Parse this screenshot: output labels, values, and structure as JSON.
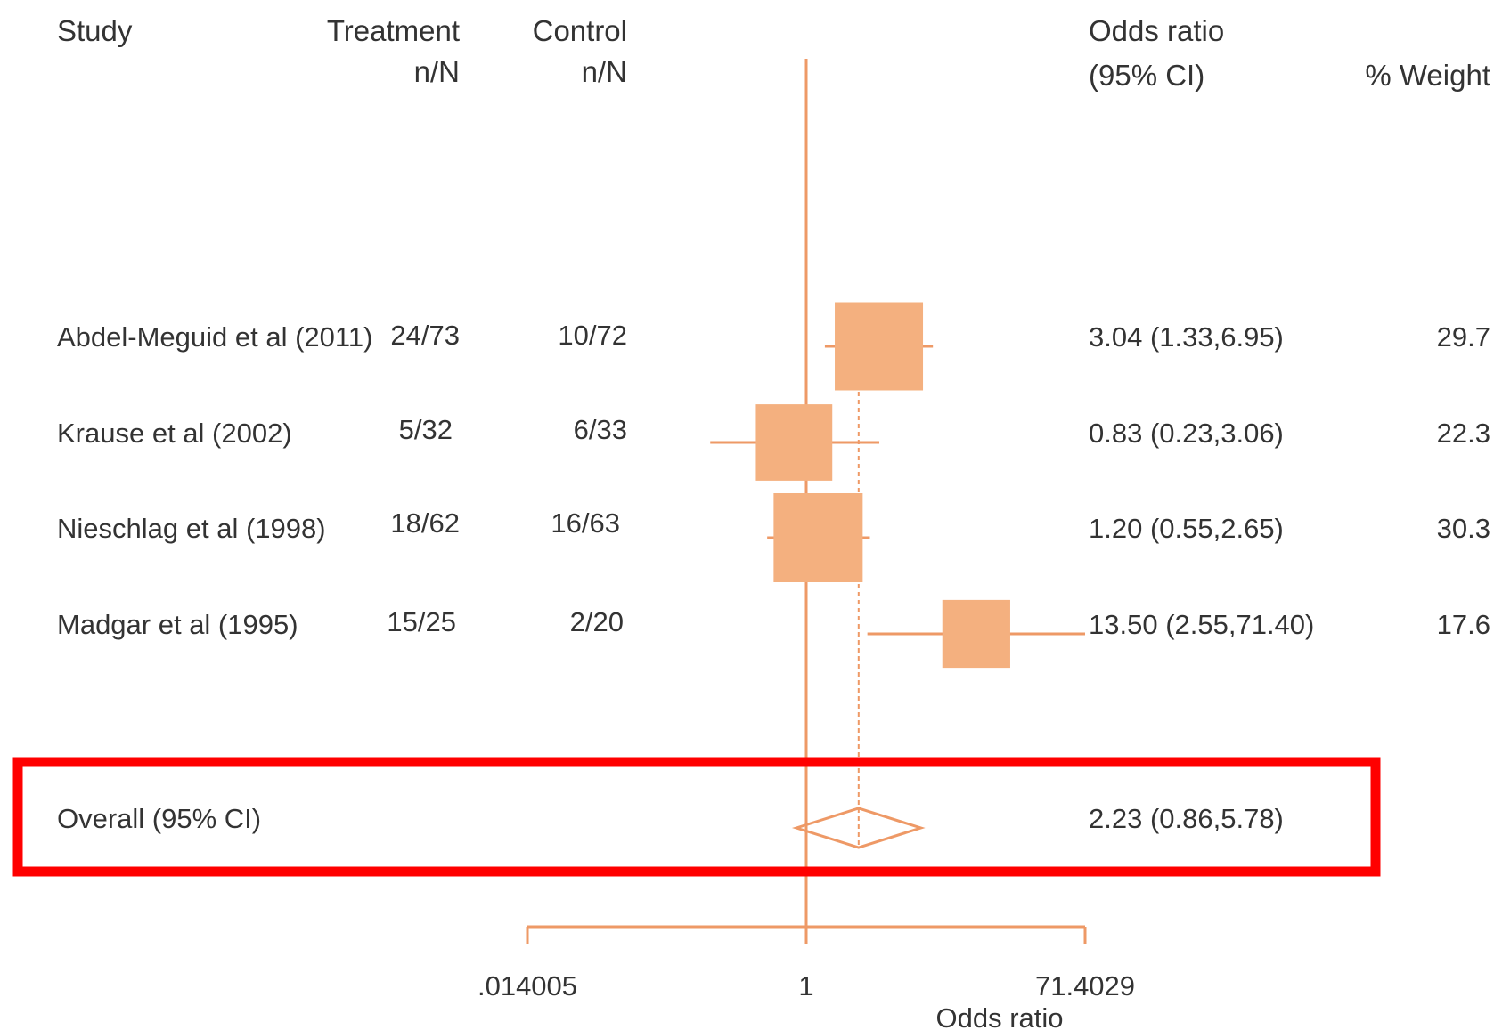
{
  "chart_data": {
    "type": "forest",
    "headers": {
      "study": "Study",
      "treatment": "Treatment",
      "treatment_sub": "n/N",
      "control": "Control",
      "control_sub": "n/N",
      "or": "Odds ratio",
      "or_sub": "(95% CI)",
      "weight": "% Weight"
    },
    "studies": [
      {
        "name": "Abdel-Meguid et al (2011)",
        "treatment": "24/73",
        "control": "10/72",
        "or": 3.04,
        "lo": 1.33,
        "hi": 6.95,
        "or_label": "3.04 (1.33,6.95)",
        "weight": 29.7,
        "weight_label": "29.7"
      },
      {
        "name": "Krause et al (2002)",
        "treatment": "5/32",
        "control": "6/33",
        "or": 0.83,
        "lo": 0.23,
        "hi": 3.06,
        "or_label": "0.83 (0.23,3.06)",
        "weight": 22.3,
        "weight_label": "22.3"
      },
      {
        "name": "Nieschlag et al (1998)",
        "treatment": "18/62",
        "control": "16/63",
        "or": 1.2,
        "lo": 0.55,
        "hi": 2.65,
        "or_label": "1.20 (0.55,2.65)",
        "weight": 30.3,
        "weight_label": "30.3"
      },
      {
        "name": "Madgar et al (1995)",
        "treatment": "15/25",
        "control": "2/20",
        "or": 13.5,
        "lo": 2.55,
        "hi": 71.4,
        "or_label": "13.50 (2.55,71.40)",
        "weight": 17.6,
        "weight_label": "17.6"
      }
    ],
    "overall": {
      "name": "Overall (95% CI)",
      "or": 2.23,
      "lo": 0.86,
      "hi": 5.78,
      "or_label": "2.23 (0.86,5.78)"
    },
    "x_scale": "log",
    "xlim": [
      0.014005,
      71.4029
    ],
    "x_ticks": [
      0.014005,
      1,
      71.4029
    ],
    "x_tick_labels": [
      ".014005",
      "1",
      "71.4029"
    ],
    "xlabel": "Odds ratio",
    "colors": {
      "marker": "#f4b07f",
      "line": "#ee9966",
      "highlight": "#ff0000",
      "text": "#333333"
    },
    "highlight_box": "Overall (95% CI)"
  }
}
